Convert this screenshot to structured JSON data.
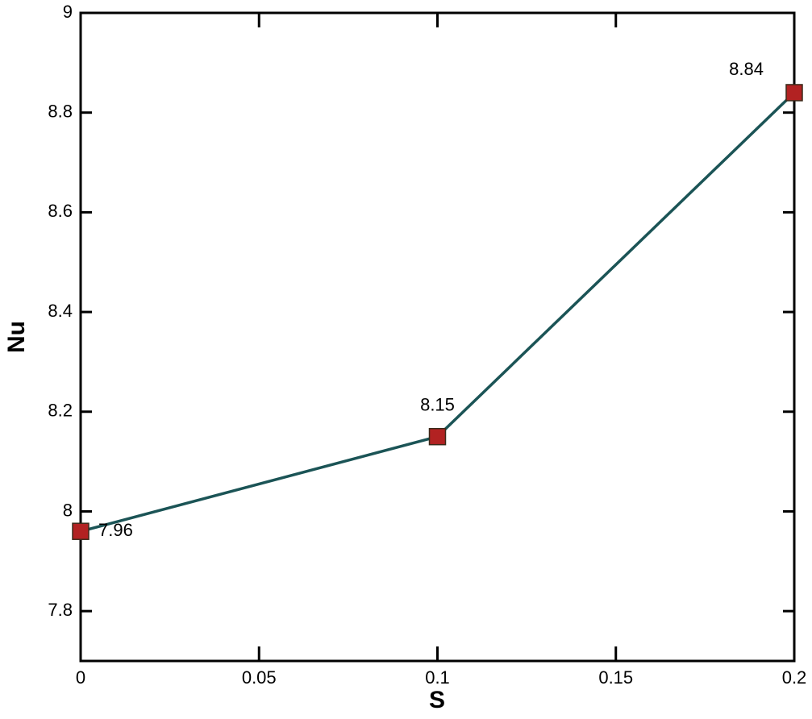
{
  "chart_data": {
    "type": "line",
    "x_label": "S",
    "y_label": "Nu",
    "x": [
      0,
      0.1,
      0.2
    ],
    "series": [
      {
        "name": "Nu",
        "color": "#1b5456",
        "marker_color": "#b22222",
        "values": [
          7.96,
          8.15,
          8.84
        ]
      }
    ],
    "xlim": [
      0,
      0.2
    ],
    "xticks": [
      0,
      0.05,
      0.1,
      0.15,
      0.2
    ],
    "ylim": [
      7.7,
      9
    ],
    "yticks": [
      7.8,
      8,
      8.2,
      8.4,
      8.6,
      8.8,
      9
    ],
    "data_labels": true,
    "grid": false
  }
}
